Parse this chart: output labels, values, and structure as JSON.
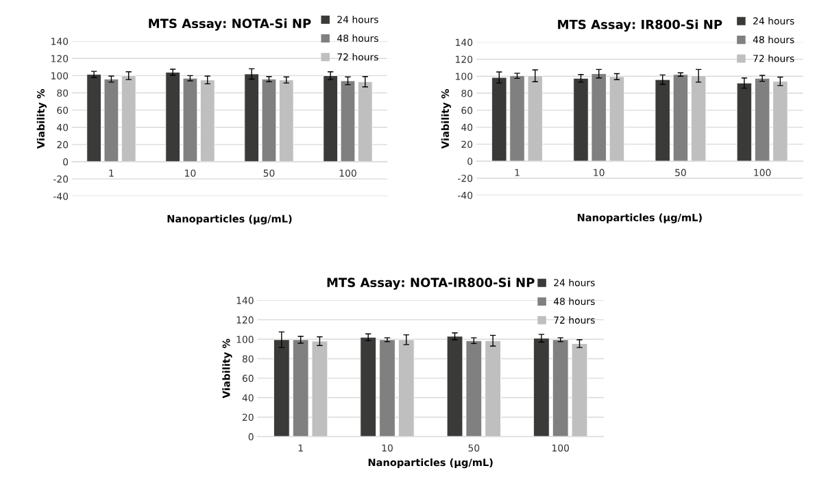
{
  "chart_data": [
    {
      "type": "bar",
      "title": "MTS Assay: NOTA-Si NP",
      "xlabel": "Nanoparticles (μg/mL)",
      "ylabel": "Viability %",
      "categories": [
        "1",
        "10",
        "50",
        "100"
      ],
      "series": [
        {
          "name": "24 hours",
          "color": "#3a3a38",
          "values": [
            101.5,
            104,
            102,
            100
          ],
          "errors": [
            3.5,
            3.5,
            6,
            4.5
          ]
        },
        {
          "name": "48 hours",
          "color": "#808080",
          "values": [
            96,
            97,
            96,
            94
          ],
          "errors": [
            3.5,
            3,
            3,
            4.5
          ]
        },
        {
          "name": "72 hours",
          "color": "#bfbfbf",
          "values": [
            100,
            95,
            95,
            93
          ],
          "errors": [
            4.5,
            4.5,
            3.5,
            6
          ]
        }
      ],
      "ylim": [
        -40,
        140
      ],
      "yticks": [
        -40,
        -20,
        0,
        20,
        40,
        60,
        80,
        100,
        120,
        140
      ],
      "grid": "y",
      "legend": "top right"
    },
    {
      "type": "bar",
      "title": "MTS Assay: IR800-Si NP",
      "xlabel": "Nanoparticles (μg/mL)",
      "ylabel": "Viability %",
      "categories": [
        "1",
        "10",
        "50",
        "100"
      ],
      "series": [
        {
          "name": "24 hours",
          "color": "#3a3a38",
          "values": [
            98.5,
            97.5,
            96,
            92
          ],
          "errors": [
            6.5,
            4.5,
            5.5,
            6
          ]
        },
        {
          "name": "48 hours",
          "color": "#808080",
          "values": [
            100.5,
            103,
            102,
            97.5
          ],
          "errors": [
            3,
            5,
            2,
            3.5
          ]
        },
        {
          "name": "72 hours",
          "color": "#bfbfbf",
          "values": [
            100.5,
            99.5,
            100.5,
            94
          ],
          "errors": [
            7,
            3.5,
            7.5,
            5
          ]
        }
      ],
      "ylim": [
        -40,
        140
      ],
      "yticks": [
        -40,
        -20,
        0,
        20,
        40,
        60,
        80,
        100,
        120,
        140
      ],
      "grid": "y",
      "legend": "top right"
    },
    {
      "type": "bar",
      "title": "MTS Assay: NOTA-IR800-Si NP",
      "xlabel": "Nanoparticles (μg/mL)",
      "ylabel": "Viability %",
      "categories": [
        "1",
        "10",
        "50",
        "100"
      ],
      "series": [
        {
          "name": "24 hours",
          "color": "#3a3a38",
          "values": [
            99.5,
            102,
            103,
            101
          ],
          "errors": [
            8,
            3.5,
            3.5,
            4
          ]
        },
        {
          "name": "48 hours",
          "color": "#808080",
          "values": [
            99.5,
            99.5,
            98.5,
            99.5
          ],
          "errors": [
            3.5,
            2,
            3,
            2
          ]
        },
        {
          "name": "72 hours",
          "color": "#bfbfbf",
          "values": [
            98,
            99.5,
            98.5,
            95.5
          ],
          "errors": [
            4.5,
            5,
            5.5,
            4
          ]
        }
      ],
      "ylim": [
        0,
        140
      ],
      "yticks": [
        0,
        20,
        40,
        60,
        80,
        100,
        120,
        140
      ],
      "grid": "y",
      "legend": "top right"
    }
  ]
}
